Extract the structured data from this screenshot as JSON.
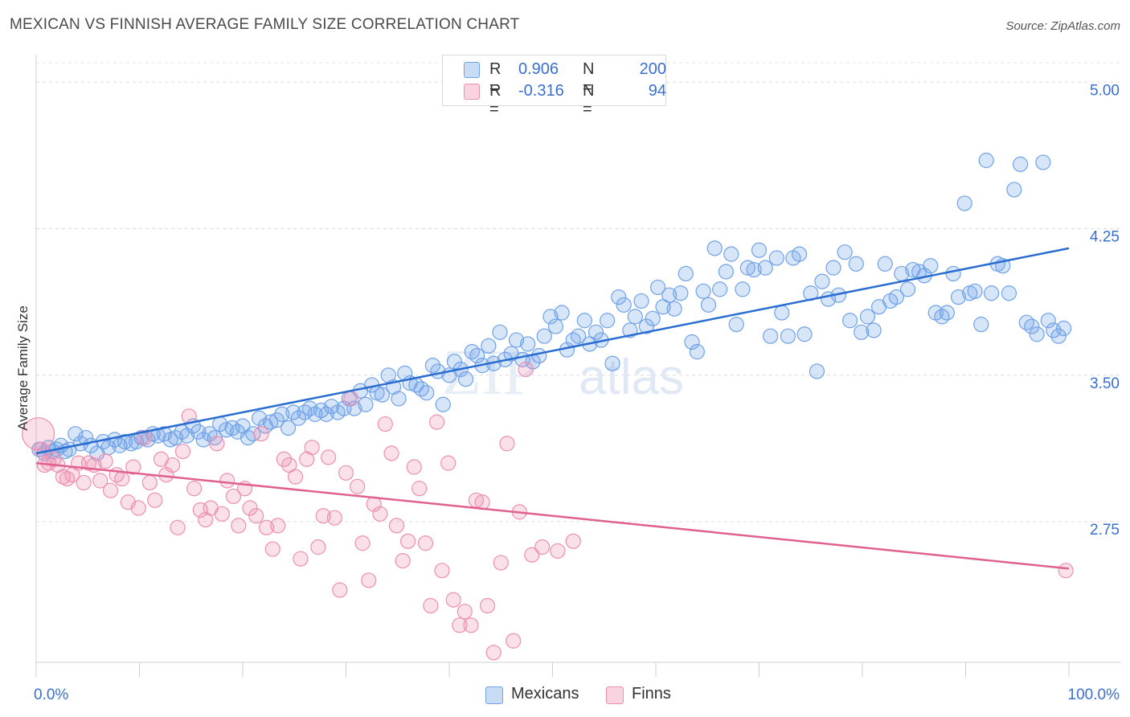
{
  "header": {
    "title": "MEXICAN VS FINNISH AVERAGE FAMILY SIZE CORRELATION CHART",
    "source": "Source: ZipAtlas.com"
  },
  "legend": {
    "rows": [
      {
        "r_key": "R =",
        "r_value": "0.906",
        "n_key": "N =",
        "n_value": "200",
        "color": "#6fa2e8"
      },
      {
        "r_key": "R =",
        "r_value": "-0.316",
        "n_key": "N =",
        "n_value": "94",
        "color": "#ee8fb0"
      }
    ]
  },
  "bottom_legend": {
    "items": [
      {
        "label": "Mexicans",
        "color": "#6fa2e8"
      },
      {
        "label": "Finns",
        "color": "#ee8fb0"
      }
    ]
  },
  "watermark": {
    "zip": "ZIP",
    "atlas": "atlas"
  },
  "chart_data": {
    "type": "scatter",
    "title": "MEXICAN VS FINNISH AVERAGE FAMILY SIZE CORRELATION CHART",
    "xlabel": "",
    "ylabel": "Average Family Size",
    "xlim": [
      0,
      100
    ],
    "ylim": [
      2.03,
      5.1
    ],
    "x_tick_labels": [
      "0.0%",
      "100.0%"
    ],
    "y_ticks": [
      2.75,
      3.5,
      4.25,
      5.0
    ],
    "y_tick_labels": [
      "2.75",
      "3.50",
      "4.25",
      "5.00"
    ],
    "grid": true,
    "legend_position": "top-center",
    "series": [
      {
        "name": "Mexicans",
        "color": "#6fa2e8",
        "line_color": "#2a6dd0",
        "trend": {
          "x": [
            0,
            100
          ],
          "y": [
            3.1,
            4.15
          ]
        },
        "points": [
          [
            0.3,
            3.12
          ],
          [
            0.8,
            3.1
          ],
          [
            1.2,
            3.13
          ],
          [
            1.6,
            3.11
          ],
          [
            2.0,
            3.12
          ],
          [
            2.4,
            3.14
          ],
          [
            2.8,
            3.11
          ],
          [
            3.2,
            3.12
          ],
          [
            3.8,
            3.2
          ],
          [
            4.3,
            3.15
          ],
          [
            4.8,
            3.18
          ],
          [
            5.3,
            3.14
          ],
          [
            5.9,
            3.1
          ],
          [
            6.5,
            3.16
          ],
          [
            7.0,
            3.13
          ],
          [
            7.6,
            3.17
          ],
          [
            8.1,
            3.14
          ],
          [
            8.6,
            3.16
          ],
          [
            9.2,
            3.15
          ],
          [
            9.7,
            3.16
          ],
          [
            10.2,
            3.18
          ],
          [
            10.8,
            3.17
          ],
          [
            11.3,
            3.2
          ],
          [
            11.8,
            3.19
          ],
          [
            12.4,
            3.2
          ],
          [
            13.0,
            3.17
          ],
          [
            13.5,
            3.18
          ],
          [
            14.1,
            3.21
          ],
          [
            14.6,
            3.19
          ],
          [
            15.2,
            3.24
          ],
          [
            15.7,
            3.21
          ],
          [
            16.2,
            3.17
          ],
          [
            16.8,
            3.2
          ],
          [
            17.3,
            3.18
          ],
          [
            17.8,
            3.25
          ],
          [
            18.4,
            3.22
          ],
          [
            19.0,
            3.23
          ],
          [
            19.5,
            3.21
          ],
          [
            20.0,
            3.24
          ],
          [
            20.5,
            3.18
          ],
          [
            21.0,
            3.2
          ],
          [
            21.6,
            3.28
          ],
          [
            22.2,
            3.24
          ],
          [
            22.7,
            3.26
          ],
          [
            23.3,
            3.27
          ],
          [
            23.8,
            3.3
          ],
          [
            24.4,
            3.23
          ],
          [
            24.9,
            3.31
          ],
          [
            25.4,
            3.28
          ],
          [
            26.0,
            3.31
          ],
          [
            26.5,
            3.33
          ],
          [
            27.0,
            3.3
          ],
          [
            27.6,
            3.32
          ],
          [
            28.1,
            3.3
          ],
          [
            28.6,
            3.34
          ],
          [
            29.2,
            3.31
          ],
          [
            29.8,
            3.33
          ],
          [
            30.3,
            3.38
          ],
          [
            30.8,
            3.33
          ],
          [
            31.4,
            3.42
          ],
          [
            31.9,
            3.35
          ],
          [
            32.5,
            3.45
          ],
          [
            33.0,
            3.41
          ],
          [
            33.5,
            3.4
          ],
          [
            34.1,
            3.5
          ],
          [
            34.6,
            3.44
          ],
          [
            35.1,
            3.38
          ],
          [
            35.7,
            3.51
          ],
          [
            36.2,
            3.46
          ],
          [
            36.8,
            3.45
          ],
          [
            37.3,
            3.43
          ],
          [
            37.8,
            3.41
          ],
          [
            38.4,
            3.55
          ],
          [
            38.9,
            3.52
          ],
          [
            39.4,
            3.35
          ],
          [
            40.0,
            3.5
          ],
          [
            40.5,
            3.57
          ],
          [
            41.1,
            3.53
          ],
          [
            41.6,
            3.48
          ],
          [
            42.2,
            3.62
          ],
          [
            42.7,
            3.6
          ],
          [
            43.2,
            3.55
          ],
          [
            43.8,
            3.65
          ],
          [
            44.3,
            3.56
          ],
          [
            44.9,
            3.72
          ],
          [
            45.4,
            3.58
          ],
          [
            46.0,
            3.61
          ],
          [
            46.5,
            3.68
          ],
          [
            47.1,
            3.58
          ],
          [
            47.6,
            3.66
          ],
          [
            48.1,
            3.57
          ],
          [
            48.7,
            3.6
          ],
          [
            49.2,
            3.7
          ],
          [
            49.8,
            3.8
          ],
          [
            50.3,
            3.75
          ],
          [
            50.9,
            3.82
          ],
          [
            51.4,
            3.63
          ],
          [
            52.0,
            3.68
          ],
          [
            52.5,
            3.7
          ],
          [
            53.1,
            3.78
          ],
          [
            53.6,
            3.66
          ],
          [
            54.2,
            3.72
          ],
          [
            54.7,
            3.68
          ],
          [
            55.3,
            3.78
          ],
          [
            55.8,
            3.56
          ],
          [
            56.4,
            3.9
          ],
          [
            56.9,
            3.86
          ],
          [
            57.5,
            3.73
          ],
          [
            58.0,
            3.8
          ],
          [
            58.6,
            3.88
          ],
          [
            59.1,
            3.75
          ],
          [
            59.7,
            3.79
          ],
          [
            60.2,
            3.95
          ],
          [
            60.7,
            3.85
          ],
          [
            61.3,
            3.91
          ],
          [
            61.8,
            3.84
          ],
          [
            62.4,
            3.92
          ],
          [
            62.9,
            4.02
          ],
          [
            63.5,
            3.67
          ],
          [
            64.0,
            3.62
          ],
          [
            64.6,
            3.93
          ],
          [
            65.1,
            3.86
          ],
          [
            65.7,
            4.15
          ],
          [
            66.2,
            3.94
          ],
          [
            66.8,
            4.03
          ],
          [
            67.3,
            4.12
          ],
          [
            67.8,
            3.76
          ],
          [
            68.4,
            3.94
          ],
          [
            68.9,
            4.05
          ],
          [
            69.5,
            4.04
          ],
          [
            70.0,
            4.14
          ],
          [
            70.6,
            4.05
          ],
          [
            71.1,
            3.7
          ],
          [
            71.7,
            4.1
          ],
          [
            72.2,
            3.82
          ],
          [
            72.8,
            3.7
          ],
          [
            73.3,
            4.1
          ],
          [
            73.9,
            4.12
          ],
          [
            74.4,
            3.71
          ],
          [
            75.0,
            3.92
          ],
          [
            75.6,
            3.52
          ],
          [
            76.1,
            3.98
          ],
          [
            76.7,
            3.89
          ],
          [
            77.2,
            4.05
          ],
          [
            77.7,
            3.91
          ],
          [
            78.3,
            4.13
          ],
          [
            78.8,
            3.78
          ],
          [
            79.4,
            4.07
          ],
          [
            79.9,
            3.72
          ],
          [
            80.5,
            3.8
          ],
          [
            81.1,
            3.73
          ],
          [
            81.6,
            3.85
          ],
          [
            82.2,
            4.07
          ],
          [
            82.7,
            3.88
          ],
          [
            83.3,
            3.9
          ],
          [
            83.8,
            4.02
          ],
          [
            84.4,
            3.94
          ],
          [
            84.9,
            4.04
          ],
          [
            85.5,
            4.03
          ],
          [
            86.0,
            4.01
          ],
          [
            86.6,
            4.06
          ],
          [
            87.1,
            3.82
          ],
          [
            87.7,
            3.8
          ],
          [
            88.2,
            3.82
          ],
          [
            88.8,
            4.02
          ],
          [
            89.3,
            3.9
          ],
          [
            89.9,
            4.38
          ],
          [
            90.4,
            3.92
          ],
          [
            90.9,
            3.93
          ],
          [
            91.5,
            3.76
          ],
          [
            92.0,
            4.6
          ],
          [
            92.5,
            3.92
          ],
          [
            93.1,
            4.07
          ],
          [
            93.6,
            4.06
          ],
          [
            94.2,
            3.92
          ],
          [
            94.7,
            4.45
          ],
          [
            95.3,
            4.58
          ],
          [
            95.9,
            3.77
          ],
          [
            96.4,
            3.75
          ],
          [
            96.9,
            3.71
          ],
          [
            97.5,
            4.59
          ],
          [
            98.0,
            3.78
          ],
          [
            98.5,
            3.73
          ],
          [
            99.0,
            3.7
          ],
          [
            99.5,
            3.74
          ]
        ]
      },
      {
        "name": "Finns",
        "color": "#ee8fb0",
        "line_color": "#e0608f",
        "trend": {
          "x": [
            0,
            100
          ],
          "y": [
            3.05,
            2.51
          ]
        },
        "points": [
          [
            0.2,
            3.2
          ],
          [
            0.5,
            3.12
          ],
          [
            0.8,
            3.04
          ],
          [
            1.2,
            3.05
          ],
          [
            1.7,
            3.07
          ],
          [
            2.1,
            3.04
          ],
          [
            2.6,
            2.98
          ],
          [
            3.0,
            2.97
          ],
          [
            3.5,
            2.99
          ],
          [
            4.1,
            3.05
          ],
          [
            4.6,
            2.95
          ],
          [
            5.1,
            3.05
          ],
          [
            5.6,
            3.04
          ],
          [
            6.2,
            2.96
          ],
          [
            6.7,
            3.06
          ],
          [
            7.2,
            2.91
          ],
          [
            7.8,
            2.99
          ],
          [
            8.3,
            2.97
          ],
          [
            8.9,
            2.85
          ],
          [
            9.4,
            3.03
          ],
          [
            9.9,
            2.82
          ],
          [
            10.5,
            3.18
          ],
          [
            11.0,
            2.95
          ],
          [
            11.5,
            2.86
          ],
          [
            12.1,
            3.07
          ],
          [
            12.6,
            2.99
          ],
          [
            13.2,
            3.04
          ],
          [
            13.7,
            2.72
          ],
          [
            14.2,
            3.11
          ],
          [
            14.8,
            3.29
          ],
          [
            15.3,
            2.92
          ],
          [
            15.9,
            2.81
          ],
          [
            16.4,
            2.76
          ],
          [
            16.9,
            2.82
          ],
          [
            17.5,
            3.15
          ],
          [
            18.0,
            2.79
          ],
          [
            18.5,
            2.96
          ],
          [
            19.1,
            2.88
          ],
          [
            19.6,
            2.73
          ],
          [
            20.2,
            2.92
          ],
          [
            20.7,
            2.82
          ],
          [
            21.3,
            2.78
          ],
          [
            21.8,
            3.2
          ],
          [
            22.3,
            2.72
          ],
          [
            22.9,
            2.61
          ],
          [
            23.4,
            2.73
          ],
          [
            24.0,
            3.07
          ],
          [
            24.5,
            3.04
          ],
          [
            25.1,
            2.98
          ],
          [
            25.6,
            2.56
          ],
          [
            26.2,
            3.07
          ],
          [
            26.7,
            3.13
          ],
          [
            27.3,
            2.62
          ],
          [
            27.8,
            2.78
          ],
          [
            28.3,
            3.08
          ],
          [
            28.9,
            2.77
          ],
          [
            29.4,
            2.4
          ],
          [
            30.0,
            3.0
          ],
          [
            30.5,
            3.38
          ],
          [
            31.1,
            2.93
          ],
          [
            31.6,
            2.64
          ],
          [
            32.2,
            2.45
          ],
          [
            32.7,
            2.84
          ],
          [
            33.3,
            2.79
          ],
          [
            33.8,
            3.25
          ],
          [
            34.4,
            3.1
          ],
          [
            34.9,
            2.73
          ],
          [
            35.5,
            2.55
          ],
          [
            36.0,
            2.65
          ],
          [
            36.6,
            3.03
          ],
          [
            37.1,
            2.92
          ],
          [
            37.7,
            2.64
          ],
          [
            38.2,
            2.32
          ],
          [
            38.8,
            3.26
          ],
          [
            39.3,
            2.5
          ],
          [
            39.9,
            3.05
          ],
          [
            40.4,
            2.35
          ],
          [
            41.0,
            2.22
          ],
          [
            41.5,
            2.29
          ],
          [
            42.1,
            2.22
          ],
          [
            42.6,
            2.86
          ],
          [
            43.2,
            2.85
          ],
          [
            43.7,
            2.32
          ],
          [
            44.3,
            2.08
          ],
          [
            45.0,
            2.54
          ],
          [
            45.6,
            3.15
          ],
          [
            46.2,
            2.14
          ],
          [
            46.8,
            2.8
          ],
          [
            47.4,
            3.53
          ],
          [
            48.0,
            2.58
          ],
          [
            49.0,
            2.62
          ],
          [
            50.5,
            2.6
          ],
          [
            52.0,
            2.65
          ],
          [
            99.7,
            2.5
          ]
        ]
      }
    ]
  }
}
